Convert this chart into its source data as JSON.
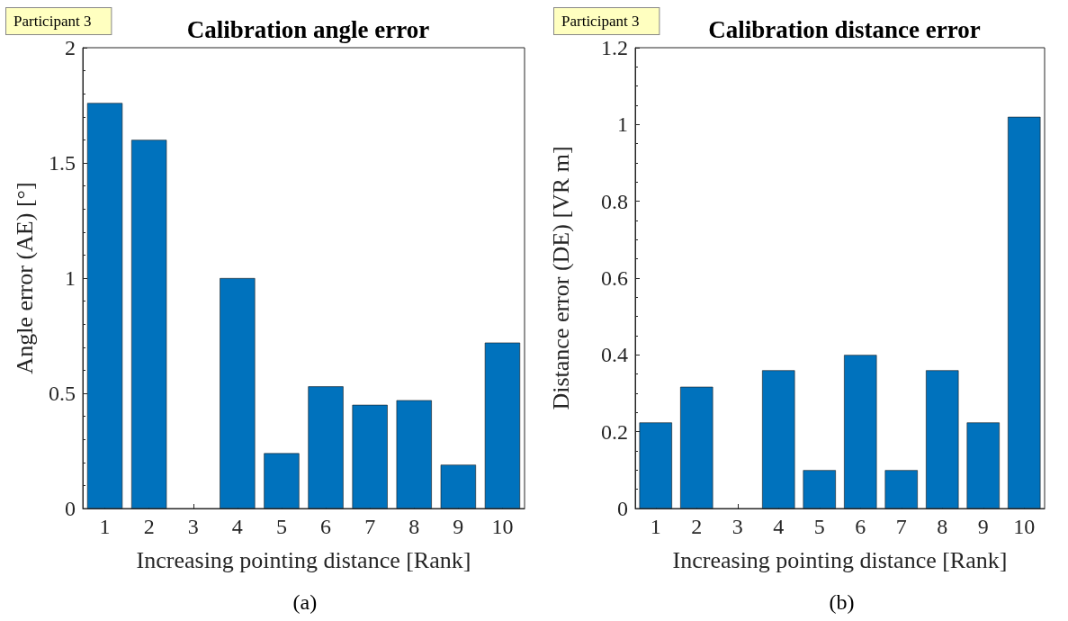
{
  "chart_data": [
    {
      "type": "bar",
      "title": "Calibration angle error",
      "xlabel": "Increasing pointing distance [Rank]",
      "ylabel": "Angle error (AE) [°]",
      "categories": [
        "1",
        "2",
        "3",
        "4",
        "5",
        "6",
        "7",
        "8",
        "9",
        "10"
      ],
      "values": [
        1.76,
        1.6,
        null,
        1.0,
        0.24,
        0.53,
        0.45,
        0.47,
        0.19,
        0.72
      ],
      "color": "#0072bd",
      "ylim": [
        0,
        2
      ],
      "yticks": [
        0,
        0.5,
        1,
        1.5,
        2
      ],
      "grid": false,
      "annotations": [
        "Participant 3",
        "(a)"
      ]
    },
    {
      "type": "bar",
      "title": "Calibration distance error",
      "xlabel": "Increasing pointing distance [Rank]",
      "ylabel": "Distance error (DE) [VR m]",
      "categories": [
        "1",
        "2",
        "3",
        "4",
        "5",
        "6",
        "7",
        "8",
        "9",
        "10"
      ],
      "values": [
        0.224,
        0.317,
        null,
        0.36,
        0.1,
        0.4,
        0.1,
        0.36,
        0.224,
        1.02
      ],
      "color": "#0072bd",
      "ylim": [
        0,
        1.2
      ],
      "yticks": [
        0,
        0.2,
        0.4,
        0.6,
        0.8,
        1,
        1.2
      ],
      "grid": false,
      "annotations": [
        "Participant 3",
        "(b)"
      ]
    }
  ]
}
